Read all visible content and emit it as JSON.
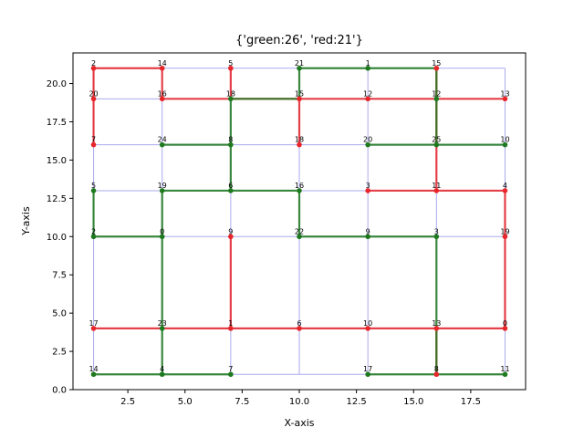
{
  "chart_data": {
    "type": "line",
    "title": "{'green:26', 'red:21'}",
    "xlabel": "X-axis",
    "ylabel": "Y-axis",
    "xlim": [
      0.1,
      19.9
    ],
    "ylim": [
      0,
      22
    ],
    "xticks": [
      "2.5",
      "5.0",
      "7.5",
      "10.0",
      "12.5",
      "15.0",
      "17.5"
    ],
    "xtick_values": [
      2.5,
      5.0,
      7.5,
      10.0,
      12.5,
      15.0,
      17.5
    ],
    "yticks": [
      "0.0",
      "2.5",
      "5.0",
      "7.5",
      "10.0",
      "12.5",
      "15.0",
      "17.5",
      "20.0"
    ],
    "ytick_values": [
      0,
      2.5,
      5,
      7.5,
      10,
      12.5,
      15,
      17.5,
      20
    ],
    "grid_x": [
      1,
      4,
      7,
      10,
      13,
      16,
      19
    ],
    "grid_y": [
      1,
      4,
      10,
      13,
      16,
      19,
      21
    ],
    "colors": {
      "green": "#1f7a1f",
      "red": "#e8262a",
      "grid": "#aaaaee"
    },
    "nodes": [
      {
        "x": 1,
        "y": 21,
        "label": "2",
        "color": "red"
      },
      {
        "x": 4,
        "y": 21,
        "label": "14",
        "color": "red"
      },
      {
        "x": 7,
        "y": 21,
        "label": "5",
        "color": "red"
      },
      {
        "x": 10,
        "y": 21,
        "label": "21",
        "color": "green"
      },
      {
        "x": 13,
        "y": 21,
        "label": "1",
        "color": "green"
      },
      {
        "x": 16,
        "y": 21,
        "label": "15",
        "color": "red"
      },
      {
        "x": 1,
        "y": 19,
        "label": "20",
        "color": "red"
      },
      {
        "x": 4,
        "y": 19,
        "label": "16",
        "color": "red"
      },
      {
        "x": 7,
        "y": 19,
        "label": "18",
        "color": "green"
      },
      {
        "x": 10,
        "y": 19,
        "label": "15",
        "color": "red"
      },
      {
        "x": 13,
        "y": 19,
        "label": "12",
        "color": "red"
      },
      {
        "x": 16,
        "y": 19,
        "label": "12",
        "color": "green"
      },
      {
        "x": 19,
        "y": 19,
        "label": "13",
        "color": "red"
      },
      {
        "x": 1,
        "y": 16,
        "label": "7",
        "color": "red"
      },
      {
        "x": 4,
        "y": 16,
        "label": "24",
        "color": "green"
      },
      {
        "x": 7,
        "y": 16,
        "label": "8",
        "color": "green"
      },
      {
        "x": 10,
        "y": 16,
        "label": "18",
        "color": "red"
      },
      {
        "x": 13,
        "y": 16,
        "label": "20",
        "color": "green"
      },
      {
        "x": 16,
        "y": 16,
        "label": "25",
        "color": "green"
      },
      {
        "x": 19,
        "y": 16,
        "label": "10",
        "color": "green"
      },
      {
        "x": 1,
        "y": 13,
        "label": "5",
        "color": "green"
      },
      {
        "x": 4,
        "y": 13,
        "label": "19",
        "color": "green"
      },
      {
        "x": 7,
        "y": 13,
        "label": "6",
        "color": "green"
      },
      {
        "x": 10,
        "y": 13,
        "label": "16",
        "color": "green"
      },
      {
        "x": 13,
        "y": 13,
        "label": "3",
        "color": "red"
      },
      {
        "x": 16,
        "y": 13,
        "label": "11",
        "color": "red"
      },
      {
        "x": 19,
        "y": 13,
        "label": "4",
        "color": "red"
      },
      {
        "x": 1,
        "y": 10,
        "label": "2",
        "color": "green"
      },
      {
        "x": 4,
        "y": 10,
        "label": "0",
        "color": "green"
      },
      {
        "x": 7,
        "y": 10,
        "label": "9",
        "color": "red"
      },
      {
        "x": 10,
        "y": 10,
        "label": "22",
        "color": "green"
      },
      {
        "x": 13,
        "y": 10,
        "label": "9",
        "color": "green"
      },
      {
        "x": 16,
        "y": 10,
        "label": "3",
        "color": "green"
      },
      {
        "x": 19,
        "y": 10,
        "label": "19",
        "color": "red"
      },
      {
        "x": 1,
        "y": 4,
        "label": "17",
        "color": "red"
      },
      {
        "x": 4,
        "y": 4,
        "label": "23",
        "color": "green"
      },
      {
        "x": 7,
        "y": 4,
        "label": "1",
        "color": "red"
      },
      {
        "x": 10,
        "y": 4,
        "label": "6",
        "color": "red"
      },
      {
        "x": 13,
        "y": 4,
        "label": "10",
        "color": "red"
      },
      {
        "x": 16,
        "y": 4,
        "label": "13",
        "color": "red"
      },
      {
        "x": 19,
        "y": 4,
        "label": "0",
        "color": "red"
      },
      {
        "x": 1,
        "y": 1,
        "label": "14",
        "color": "green"
      },
      {
        "x": 4,
        "y": 1,
        "label": "4",
        "color": "green"
      },
      {
        "x": 7,
        "y": 1,
        "label": "7",
        "color": "green"
      },
      {
        "x": 13,
        "y": 1,
        "label": "17",
        "color": "green"
      },
      {
        "x": 16,
        "y": 1,
        "label": "8",
        "color": "red"
      },
      {
        "x": 19,
        "y": 1,
        "label": "11",
        "color": "green"
      }
    ],
    "grid_edges": [
      [
        [
          1,
          21
        ],
        [
          1,
          19
        ]
      ],
      [
        [
          1,
          19
        ],
        [
          1,
          16
        ]
      ],
      [
        [
          1,
          16
        ],
        [
          1,
          13
        ]
      ],
      [
        [
          1,
          13
        ],
        [
          1,
          10
        ]
      ],
      [
        [
          1,
          10
        ],
        [
          1,
          4
        ]
      ],
      [
        [
          1,
          4
        ],
        [
          1,
          1
        ]
      ],
      [
        [
          4,
          21
        ],
        [
          4,
          19
        ]
      ],
      [
        [
          4,
          19
        ],
        [
          4,
          16
        ]
      ],
      [
        [
          4,
          16
        ],
        [
          4,
          13
        ]
      ],
      [
        [
          4,
          13
        ],
        [
          4,
          10
        ]
      ],
      [
        [
          4,
          10
        ],
        [
          4,
          4
        ]
      ],
      [
        [
          4,
          4
        ],
        [
          4,
          1
        ]
      ],
      [
        [
          7,
          21
        ],
        [
          7,
          19
        ]
      ],
      [
        [
          7,
          19
        ],
        [
          7,
          16
        ]
      ],
      [
        [
          7,
          16
        ],
        [
          7,
          13
        ]
      ],
      [
        [
          7,
          13
        ],
        [
          7,
          10
        ]
      ],
      [
        [
          7,
          10
        ],
        [
          7,
          4
        ]
      ],
      [
        [
          7,
          4
        ],
        [
          7,
          1
        ]
      ],
      [
        [
          10,
          21
        ],
        [
          10,
          19
        ]
      ],
      [
        [
          10,
          19
        ],
        [
          10,
          16
        ]
      ],
      [
        [
          10,
          16
        ],
        [
          10,
          13
        ]
      ],
      [
        [
          10,
          13
        ],
        [
          10,
          10
        ]
      ],
      [
        [
          10,
          10
        ],
        [
          10,
          4
        ]
      ],
      [
        [
          10,
          4
        ],
        [
          10,
          1
        ]
      ],
      [
        [
          13,
          21
        ],
        [
          13,
          19
        ]
      ],
      [
        [
          13,
          19
        ],
        [
          13,
          16
        ]
      ],
      [
        [
          13,
          16
        ],
        [
          13,
          13
        ]
      ],
      [
        [
          13,
          13
        ],
        [
          13,
          10
        ]
      ],
      [
        [
          13,
          10
        ],
        [
          13,
          4
        ]
      ],
      [
        [
          13,
          4
        ],
        [
          13,
          1
        ]
      ],
      [
        [
          16,
          21
        ],
        [
          16,
          19
        ]
      ],
      [
        [
          16,
          19
        ],
        [
          16,
          16
        ]
      ],
      [
        [
          16,
          16
        ],
        [
          16,
          13
        ]
      ],
      [
        [
          16,
          13
        ],
        [
          16,
          10
        ]
      ],
      [
        [
          16,
          10
        ],
        [
          16,
          4
        ]
      ],
      [
        [
          16,
          4
        ],
        [
          16,
          1
        ]
      ],
      [
        [
          19,
          21
        ],
        [
          19,
          19
        ]
      ],
      [
        [
          19,
          19
        ],
        [
          19,
          16
        ]
      ],
      [
        [
          19,
          16
        ],
        [
          19,
          13
        ]
      ],
      [
        [
          19,
          13
        ],
        [
          19,
          10
        ]
      ],
      [
        [
          19,
          10
        ],
        [
          19,
          4
        ]
      ],
      [
        [
          19,
          4
        ],
        [
          19,
          1
        ]
      ],
      [
        [
          1,
          21
        ],
        [
          19,
          21
        ]
      ],
      [
        [
          1,
          19
        ],
        [
          19,
          19
        ]
      ],
      [
        [
          1,
          16
        ],
        [
          19,
          16
        ]
      ],
      [
        [
          1,
          13
        ],
        [
          19,
          13
        ]
      ],
      [
        [
          1,
          10
        ],
        [
          19,
          10
        ]
      ],
      [
        [
          1,
          4
        ],
        [
          19,
          4
        ]
      ],
      [
        [
          1,
          1
        ],
        [
          19,
          1
        ]
      ]
    ],
    "series": [
      {
        "color": "red",
        "edges": [
          [
            [
              1,
              21
            ],
            [
              4,
              21
            ]
          ],
          [
            [
              4,
              21
            ],
            [
              4,
              19
            ]
          ],
          [
            [
              1,
              21
            ],
            [
              1,
              19
            ]
          ],
          [
            [
              1,
              19
            ],
            [
              1,
              16
            ]
          ],
          [
            [
              4,
              19
            ],
            [
              7,
              19
            ]
          ],
          [
            [
              7,
              19
            ],
            [
              10,
              19
            ]
          ],
          [
            [
              10,
              19
            ],
            [
              13,
              19
            ]
          ],
          [
            [
              13,
              19
            ],
            [
              16,
              19
            ]
          ],
          [
            [
              16,
              19
            ],
            [
              19,
              19
            ]
          ],
          [
            [
              7,
              21
            ],
            [
              7,
              19
            ]
          ],
          [
            [
              10,
              19
            ],
            [
              10,
              16
            ]
          ],
          [
            [
              16,
              21
            ],
            [
              16,
              19
            ]
          ],
          [
            [
              16,
              19
            ],
            [
              16,
              16
            ]
          ],
          [
            [
              16,
              16
            ],
            [
              16,
              13
            ]
          ],
          [
            [
              13,
              13
            ],
            [
              16,
              13
            ]
          ],
          [
            [
              16,
              13
            ],
            [
              19,
              13
            ]
          ],
          [
            [
              19,
              13
            ],
            [
              19,
              10
            ]
          ],
          [
            [
              19,
              10
            ],
            [
              19,
              4
            ]
          ],
          [
            [
              1,
              4
            ],
            [
              4,
              4
            ]
          ],
          [
            [
              4,
              4
            ],
            [
              7,
              4
            ]
          ],
          [
            [
              7,
              4
            ],
            [
              10,
              4
            ]
          ],
          [
            [
              10,
              4
            ],
            [
              13,
              4
            ]
          ],
          [
            [
              13,
              4
            ],
            [
              16,
              4
            ]
          ],
          [
            [
              16,
              4
            ],
            [
              19,
              4
            ]
          ],
          [
            [
              7,
              10
            ],
            [
              7,
              4
            ]
          ],
          [
            [
              16,
              4
            ],
            [
              16,
              1
            ]
          ]
        ]
      },
      {
        "color": "green",
        "edges": [
          [
            [
              10,
              21
            ],
            [
              13,
              21
            ]
          ],
          [
            [
              13,
              21
            ],
            [
              16,
              21
            ]
          ],
          [
            [
              10,
              21
            ],
            [
              10,
              19
            ]
          ],
          [
            [
              7,
              19
            ],
            [
              10,
              19
            ]
          ],
          [
            [
              16,
              21
            ],
            [
              16,
              19
            ]
          ],
          [
            [
              16,
              19
            ],
            [
              16,
              16
            ]
          ],
          [
            [
              7,
              19
            ],
            [
              7,
              16
            ]
          ],
          [
            [
              7,
              16
            ],
            [
              7,
              13
            ]
          ],
          [
            [
              4,
              16
            ],
            [
              7,
              16
            ]
          ],
          [
            [
              13,
              16
            ],
            [
              16,
              16
            ]
          ],
          [
            [
              16,
              16
            ],
            [
              19,
              16
            ]
          ],
          [
            [
              1,
              13
            ],
            [
              1,
              10
            ]
          ],
          [
            [
              4,
              13
            ],
            [
              7,
              13
            ]
          ],
          [
            [
              7,
              13
            ],
            [
              10,
              13
            ]
          ],
          [
            [
              10,
              13
            ],
            [
              10,
              10
            ]
          ],
          [
            [
              1,
              10
            ],
            [
              4,
              10
            ]
          ],
          [
            [
              4,
              13
            ],
            [
              4,
              10
            ]
          ],
          [
            [
              4,
              10
            ],
            [
              4,
              4
            ]
          ],
          [
            [
              4,
              4
            ],
            [
              4,
              1
            ]
          ],
          [
            [
              10,
              10
            ],
            [
              13,
              10
            ]
          ],
          [
            [
              13,
              10
            ],
            [
              16,
              10
            ]
          ],
          [
            [
              16,
              10
            ],
            [
              16,
              4
            ]
          ],
          [
            [
              16,
              4
            ],
            [
              16,
              1
            ]
          ],
          [
            [
              1,
              1
            ],
            [
              4,
              1
            ]
          ],
          [
            [
              4,
              1
            ],
            [
              7,
              1
            ]
          ],
          [
            [
              13,
              1
            ],
            [
              16,
              1
            ]
          ],
          [
            [
              16,
              1
            ],
            [
              19,
              1
            ]
          ]
        ]
      }
    ]
  }
}
